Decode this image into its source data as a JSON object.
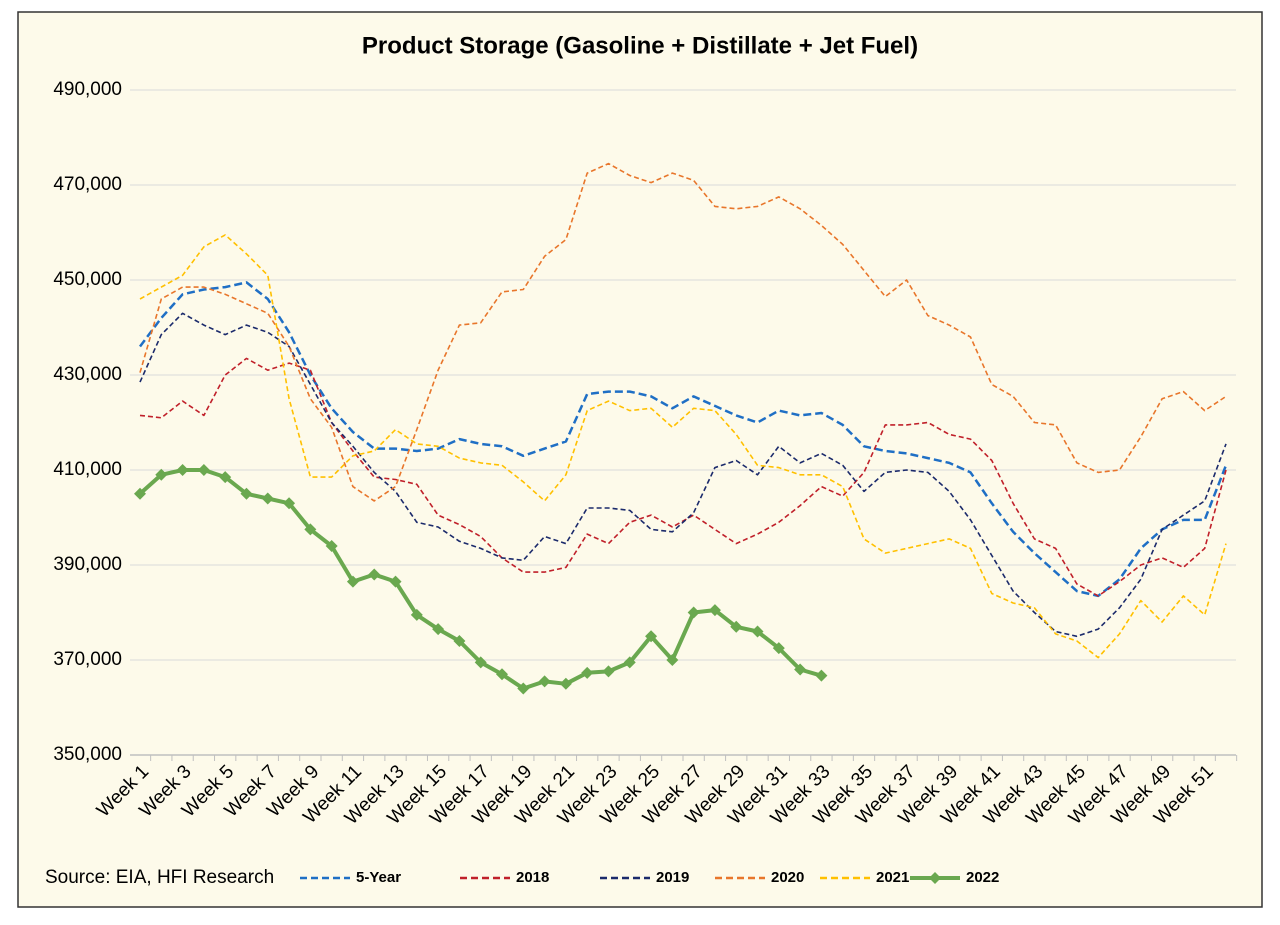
{
  "chart_data": {
    "type": "line",
    "title": "Product Storage (Gasoline + Distillate + Jet Fuel)",
    "source": "Source: EIA, HFI Research",
    "categories": [
      "Week 1",
      null,
      "Week 3",
      null,
      "Week 5",
      null,
      "Week 7",
      null,
      "Week 9",
      null,
      "Week 11",
      null,
      "Week 13",
      null,
      "Week 15",
      null,
      "Week 17",
      null,
      "Week 19",
      null,
      "Week 21",
      null,
      "Week 23",
      null,
      "Week 25",
      null,
      "Week 27",
      null,
      "Week 29",
      null,
      "Week 31",
      null,
      "Week 33",
      null,
      "Week 35",
      null,
      "Week 37",
      null,
      "Week 39",
      null,
      "Week 41",
      null,
      "Week 43",
      null,
      "Week 45",
      null,
      "Week 47",
      null,
      "Week 49",
      null,
      "Week 51",
      null
    ],
    "ylim": [
      350000,
      490000
    ],
    "yticks": [
      {
        "value": 350000,
        "label": "350,000"
      },
      {
        "value": 370000,
        "label": "370,000"
      },
      {
        "value": 390000,
        "label": "390,000"
      },
      {
        "value": 410000,
        "label": "410,000"
      },
      {
        "value": 430000,
        "label": "430,000"
      },
      {
        "value": 450000,
        "label": "450,000"
      },
      {
        "value": 470000,
        "label": "470,000"
      },
      {
        "value": 490000,
        "label": "490,000"
      }
    ],
    "grid": true,
    "legend": "bottom",
    "series": [
      {
        "name": "5-Year",
        "color": "#1f6fc5",
        "dashed": true,
        "values": [
          436000,
          442000,
          447000,
          448000,
          448500,
          449500,
          446000,
          439000,
          430000,
          423000,
          418000,
          414500,
          414500,
          414000,
          414500,
          416500,
          415500,
          415000,
          413000,
          414500,
          416000,
          426000,
          426500,
          426500,
          425500,
          423000,
          425500,
          423500,
          421500,
          420000,
          422500,
          421500,
          422000,
          419500,
          415000,
          414000,
          413500,
          412500,
          411500,
          409500,
          403000,
          397000,
          392500,
          388500,
          384500,
          383500,
          387000,
          393500,
          397500,
          399500,
          399500,
          411000
        ]
      },
      {
        "name": "2018",
        "color": "#c0202a",
        "dashed": true,
        "values": [
          421500,
          421000,
          424500,
          421500,
          430000,
          433500,
          431000,
          432500,
          431000,
          420000,
          414000,
          408500,
          408000,
          407000,
          400500,
          398500,
          396000,
          391500,
          388500,
          388500,
          389500,
          396500,
          394500,
          399000,
          400500,
          398000,
          400500,
          397500,
          394500,
          396500,
          399000,
          402500,
          406500,
          404500,
          409500,
          419500,
          419500,
          420000,
          417500,
          416500,
          412000,
          403000,
          395500,
          393500,
          386000,
          383500,
          386500,
          390000,
          391500,
          389500,
          393500,
          410000
        ]
      },
      {
        "name": "2019",
        "color": "#1b2a6b",
        "dashed": true,
        "values": [
          428500,
          438500,
          443000,
          440500,
          438500,
          440500,
          439000,
          436000,
          428000,
          420000,
          415000,
          409500,
          405500,
          399000,
          398000,
          395000,
          393500,
          391500,
          391000,
          396000,
          394500,
          402000,
          402000,
          401500,
          397500,
          397000,
          401000,
          410500,
          412000,
          409000,
          415000,
          411500,
          413500,
          411000,
          405500,
          409500,
          410000,
          409500,
          405500,
          399500,
          392000,
          384500,
          380000,
          376000,
          375000,
          376500,
          381000,
          387000,
          397500,
          400500,
          403500,
          415500
        ]
      },
      {
        "name": "2020",
        "color": "#e8762b",
        "dashed": true,
        "values": [
          430500,
          446000,
          448500,
          448500,
          447000,
          445000,
          443000,
          436000,
          425000,
          419000,
          406500,
          403500,
          406500,
          418500,
          431000,
          440500,
          441000,
          447500,
          448000,
          455000,
          458500,
          472500,
          474500,
          472000,
          470500,
          472500,
          471000,
          465500,
          465000,
          465500,
          467500,
          465000,
          461500,
          457500,
          452000,
          446500,
          450000,
          442500,
          440500,
          438000,
          428000,
          425500,
          420000,
          419500,
          411500,
          409500,
          410000,
          417000,
          425000,
          426500,
          422500,
          425500
        ]
      },
      {
        "name": "2021",
        "color": "#ffc000",
        "dashed": true,
        "values": [
          446000,
          448500,
          451000,
          457000,
          459500,
          455500,
          451000,
          425000,
          408500,
          408500,
          413000,
          414000,
          418500,
          415500,
          415000,
          412500,
          411500,
          411000,
          407500,
          403500,
          409000,
          422500,
          424500,
          422500,
          423000,
          419000,
          423000,
          422500,
          417500,
          411000,
          410500,
          409000,
          409000,
          406500,
          395500,
          392500,
          393500,
          394500,
          395500,
          393500,
          384000,
          382000,
          381000,
          375500,
          374000,
          370500,
          375500,
          382500,
          378000,
          383500,
          379500,
          394500
        ]
      },
      {
        "name": "2022",
        "color": "#6aa84f",
        "dashed": false,
        "marker": "diamond",
        "values": [
          405000,
          409000,
          410000,
          410000,
          408500,
          405000,
          404000,
          403000,
          397500,
          394000,
          386500,
          388000,
          386500,
          379500,
          376500,
          374000,
          369500,
          367000,
          364000,
          365500,
          365000,
          367300,
          367600,
          369500,
          375000,
          370000,
          380000,
          380500,
          377000,
          376000,
          372500,
          368000,
          366700,
          null,
          null,
          null,
          null,
          null,
          null,
          null,
          null,
          null,
          null,
          null,
          null,
          null,
          null,
          null,
          null,
          null,
          null,
          null
        ]
      }
    ]
  }
}
